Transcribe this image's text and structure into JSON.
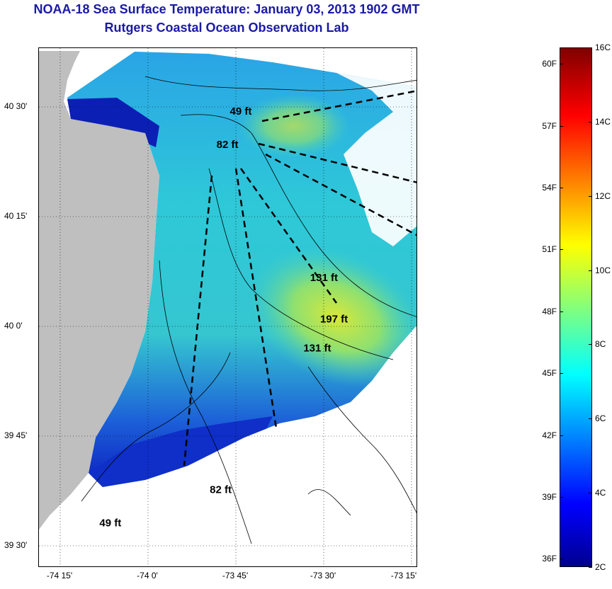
{
  "header": {
    "title": "NOAA-18 Sea Surface Temperature:  January 03, 2013 1902 GMT",
    "subtitle": "Rutgers Coastal Ocean Observation Lab"
  },
  "map": {
    "lat_labels": [
      "40 30'",
      "40 15'",
      "40 0'",
      "39 45'",
      "39 30'"
    ],
    "lon_labels": [
      "-74 15'",
      "-74 0'",
      "-73 45'",
      "-73 30'",
      "-73 15'"
    ],
    "lat_values": [
      40.5,
      40.25,
      40.0,
      39.75,
      39.5
    ],
    "lon_values": [
      -74.25,
      -74.0,
      -73.75,
      -73.5,
      -73.25
    ],
    "depth_labels": [
      {
        "text": "49 ft",
        "lon": -73.8,
        "lat": 40.54
      },
      {
        "text": "82 ft",
        "lon": -73.84,
        "lat": 40.46
      },
      {
        "text": "131 ft",
        "lon": -73.56,
        "lat": 40.14
      },
      {
        "text": "197 ft",
        "lon": -73.53,
        "lat": 40.04
      },
      {
        "text": "131 ft",
        "lon": -73.58,
        "lat": 39.97
      },
      {
        "text": "82 ft",
        "lon": -73.86,
        "lat": 39.63
      },
      {
        "text": "49 ft",
        "lon": -74.19,
        "lat": 39.55
      }
    ],
    "colors": {
      "land": "#bfbfbf",
      "cloud": "#ffffff"
    }
  },
  "colorbar": {
    "f_labels": [
      "60F",
      "57F",
      "54F",
      "51F",
      "48F",
      "45F",
      "42F",
      "39F",
      "36F"
    ],
    "c_labels": [
      "16C",
      "14C",
      "12C",
      "10C",
      "8C",
      "6C",
      "4C",
      "2C"
    ],
    "range_c": [
      2,
      16
    ],
    "colormap": "jet"
  }
}
